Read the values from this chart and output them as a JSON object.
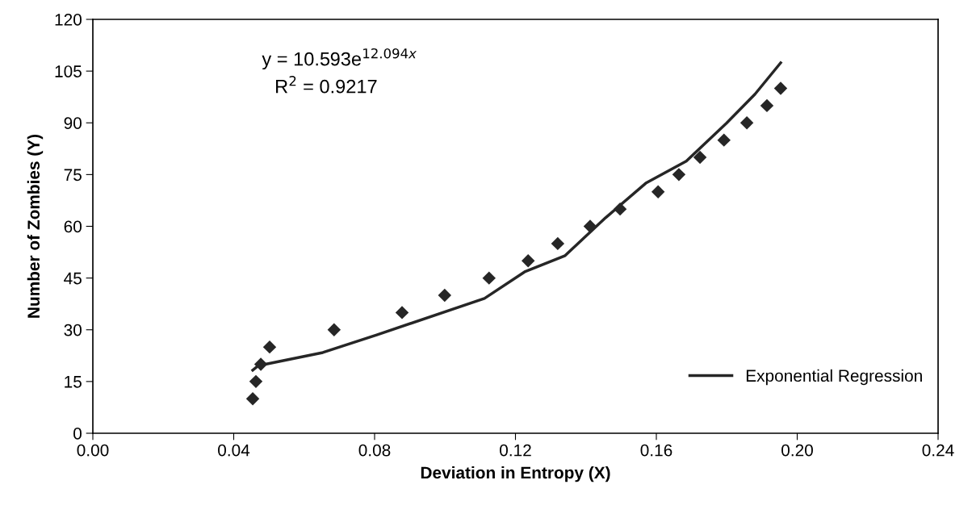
{
  "chart_data": {
    "type": "scatter",
    "xlabel": "Deviation in Entropy (X)",
    "ylabel": "Number of Zombies (Y)",
    "xlim": [
      0,
      0.24
    ],
    "xticks": [
      {
        "value": 0,
        "label": "0.00"
      },
      {
        "value": 0.04,
        "label": "0.04"
      },
      {
        "value": 0.08,
        "label": "0.08"
      },
      {
        "value": 0.12,
        "label": "0.12"
      },
      {
        "value": 0.16,
        "label": "0.16"
      },
      {
        "value": 0.2,
        "label": "0.20"
      },
      {
        "value": 0.24,
        "label": "0.24"
      }
    ],
    "ylim": [
      0,
      120
    ],
    "yticks": [
      0,
      15,
      30,
      45,
      60,
      75,
      90,
      105,
      120
    ],
    "grid": false,
    "legend": "bottom right",
    "annotations": [
      "y = 10.593e$^{12.094x}$",
      "R$^{2}$ = 0.9217"
    ],
    "series": [
      {
        "color": "#262626",
        "marker": "diamond",
        "x": [
          0.0454,
          0.0463,
          0.0477,
          0.0502,
          0.0685,
          0.0878,
          0.0999,
          0.1125,
          0.1236,
          0.132,
          0.1412,
          0.1497,
          0.1605,
          0.1664,
          0.1724,
          0.1792,
          0.1857,
          0.1914,
          0.1953
        ],
        "values": [
          10,
          15,
          20,
          25,
          30,
          35,
          40,
          45,
          50,
          55,
          60,
          65,
          70,
          75,
          80,
          85,
          90,
          95,
          100
        ]
      },
      {
        "type": "line",
        "name": "Exponential Regression",
        "color": "#262626",
        "line_style": "solid",
        "marker": "none",
        "x": [
          0.0454,
          0.047,
          0.0653,
          0.0806,
          0.1112,
          0.1226,
          0.1341,
          0.1456,
          0.157,
          0.1685,
          0.1799,
          0.188,
          0.1953
        ],
        "values": [
          18.3,
          19.6,
          23.4,
          28.5,
          39.1,
          46.8,
          51.5,
          62.5,
          72.5,
          78.9,
          89.9,
          98.3,
          107.4
        ]
      }
    ]
  }
}
